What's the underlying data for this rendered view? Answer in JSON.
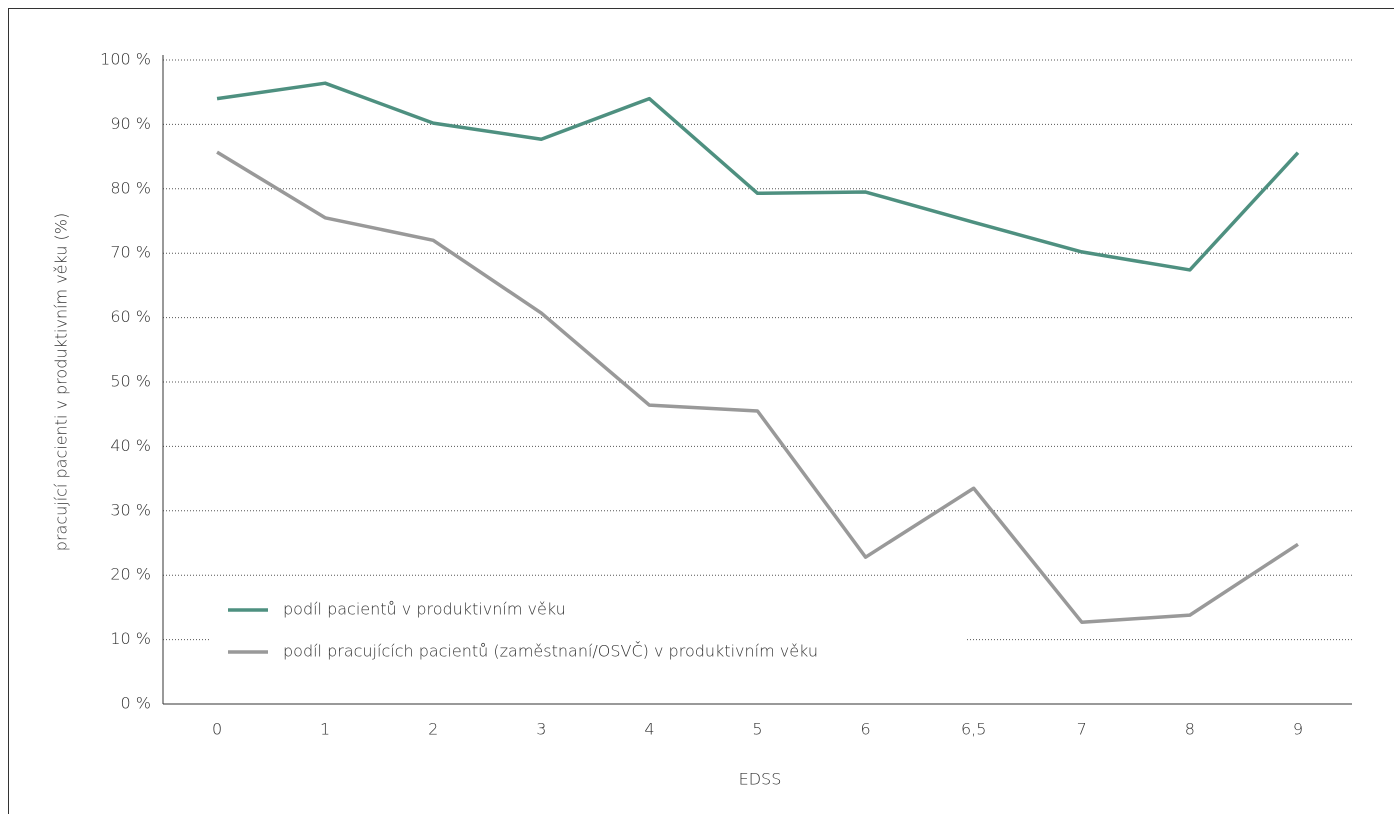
{
  "chart_data": {
    "type": "line",
    "categories": [
      "0",
      "1",
      "2",
      "3",
      "4",
      "5",
      "6",
      "6,5",
      "7",
      "8",
      "9"
    ],
    "series": [
      {
        "name": "podíl pacientů v produktivním věku",
        "color": "#4e9080",
        "values": [
          94,
          96.4,
          90.2,
          87.7,
          94,
          79.3,
          79.5,
          74.8,
          70.2,
          67.4,
          85.6
        ]
      },
      {
        "name": "podíl pracujících pacientů (zaměstnaní/OSVČ) v produktivním věku",
        "color": "#999999",
        "values": [
          85.7,
          75.5,
          72,
          60.7,
          46.4,
          45.5,
          22.8,
          33.5,
          12.7,
          13.8,
          24.8
        ]
      }
    ],
    "ylim": [
      0,
      100
    ],
    "yticks": [
      {
        "value": 0,
        "label": "0 %"
      },
      {
        "value": 10,
        "label": "10 %"
      },
      {
        "value": 20,
        "label": "20 %"
      },
      {
        "value": 30,
        "label": "30 %"
      },
      {
        "value": 40,
        "label": "40 %"
      },
      {
        "value": 50,
        "label": "50 %"
      },
      {
        "value": 60,
        "label": "60 %"
      },
      {
        "value": 70,
        "label": "70 %"
      },
      {
        "value": 80,
        "label": "80 %"
      },
      {
        "value": 90,
        "label": "90 %"
      },
      {
        "value": 100,
        "label": "100 %"
      }
    ],
    "xlabel": "EDSS",
    "ylabel": "pracující pacienti v produktivním věku (%)",
    "grid": true,
    "legend": "lower left"
  }
}
